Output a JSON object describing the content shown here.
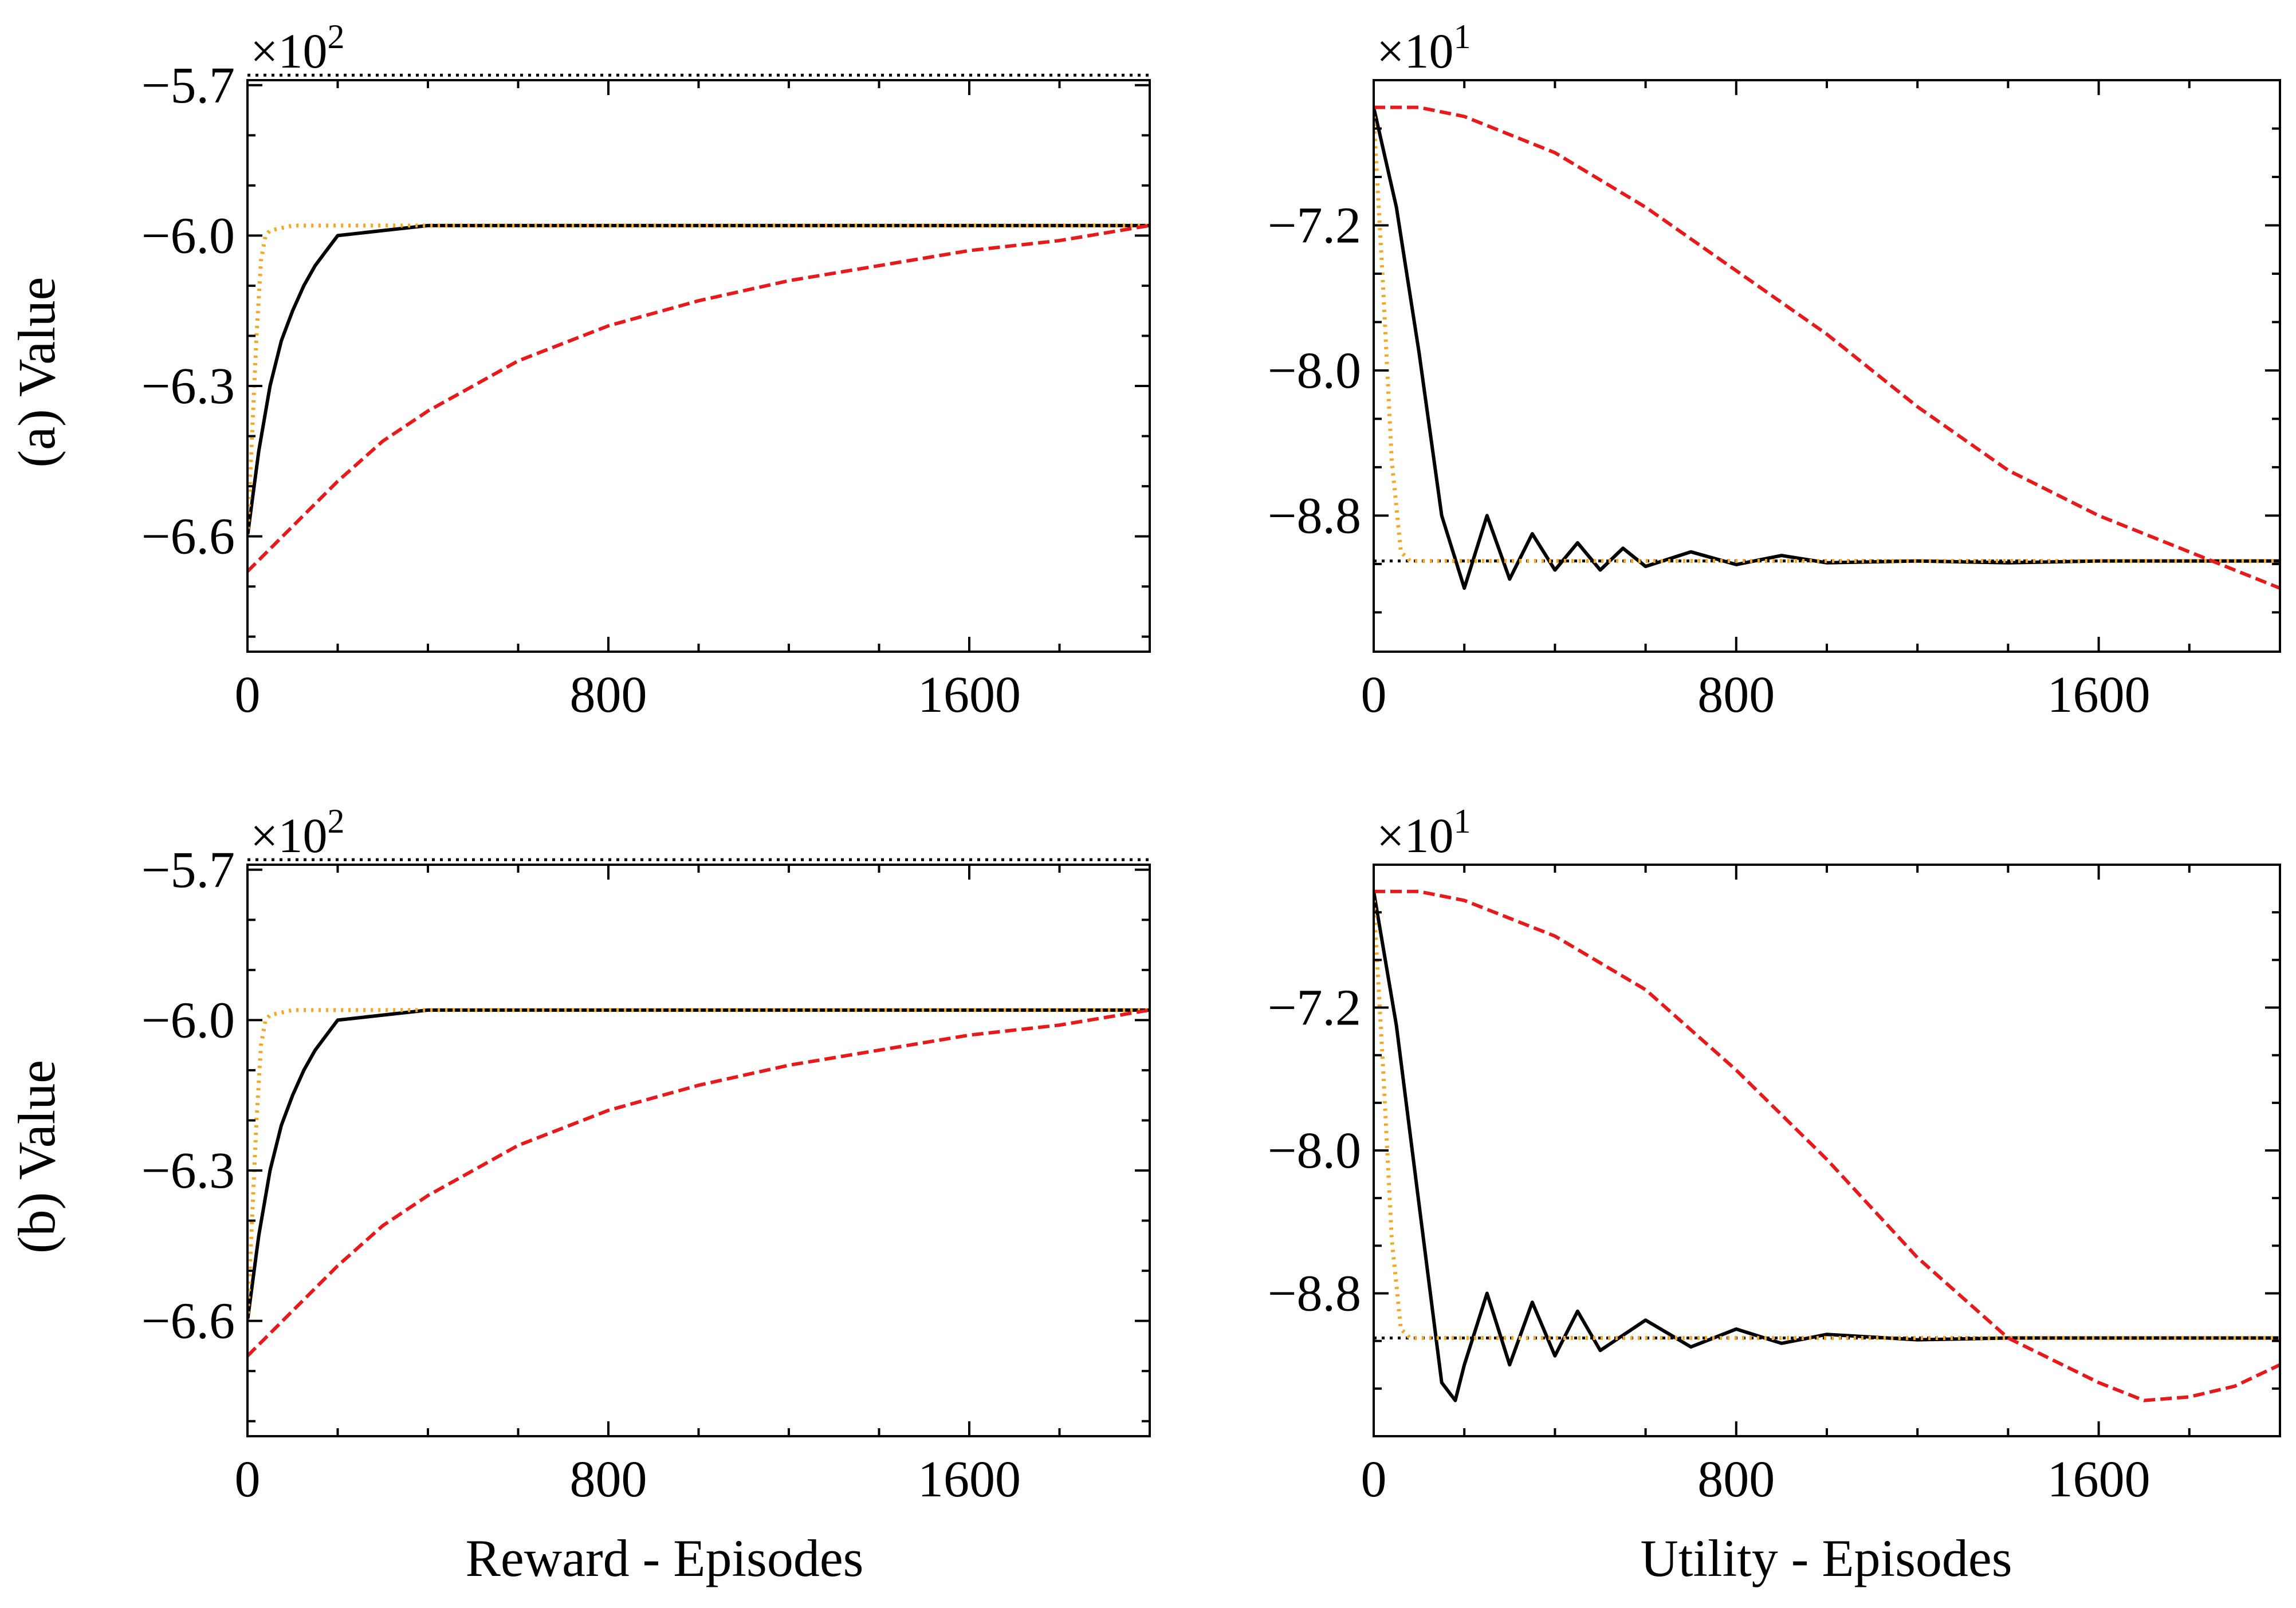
{
  "figure": {
    "x_axis_titles": [
      "Reward - Episodes",
      "Utility - Episodes"
    ],
    "row_titles": [
      "(a) Value",
      "(b) Value"
    ]
  },
  "chart_data": [
    {
      "id": "a-reward",
      "type": "line",
      "row_title": "(a) Value",
      "xlabel": "",
      "ylabel": "(a) Value",
      "multiplier": {
        "base": "×10",
        "exp": "2"
      },
      "xlim": [
        0,
        2000
      ],
      "ylim": [
        -6.83,
        -5.69
      ],
      "xticks": [
        0,
        800,
        1600
      ],
      "xtick_labels": [
        "0",
        "800",
        "1600"
      ],
      "yticks": [
        -6.6,
        -6.3,
        -6.0,
        -5.7
      ],
      "ytick_labels": [
        "−6.6",
        "−6.3",
        "−6.0",
        "−5.7"
      ],
      "reference_line": -5.68,
      "series": [
        {
          "style": "solid",
          "color": "#000000",
          "x": [
            0,
            25,
            50,
            75,
            100,
            125,
            150,
            175,
            200,
            300,
            400,
            600,
            800,
            1000,
            1200,
            1400,
            1600,
            1800,
            2000
          ],
          "y": [
            -6.6,
            -6.43,
            -6.3,
            -6.21,
            -6.15,
            -6.1,
            -6.06,
            -6.03,
            -6.0,
            -5.99,
            -5.98,
            -5.98,
            -5.98,
            -5.98,
            -5.98,
            -5.98,
            -5.98,
            -5.98,
            -5.98
          ]
        },
        {
          "style": "dotted",
          "color": "#F5A623",
          "x": [
            0,
            10,
            20,
            30,
            40,
            50,
            100,
            400,
            800,
            1200,
            1600,
            2000
          ],
          "y": [
            -6.6,
            -6.4,
            -6.2,
            -6.05,
            -6.0,
            -5.99,
            -5.98,
            -5.98,
            -5.98,
            -5.98,
            -5.98,
            -5.98
          ]
        },
        {
          "style": "dashed",
          "color": "#E8191B",
          "x": [
            0,
            100,
            200,
            300,
            400,
            500,
            600,
            800,
            1000,
            1200,
            1400,
            1600,
            1800,
            2000
          ],
          "y": [
            -6.67,
            -6.58,
            -6.49,
            -6.41,
            -6.35,
            -6.3,
            -6.25,
            -6.18,
            -6.13,
            -6.09,
            -6.06,
            -6.03,
            -6.01,
            -5.98
          ]
        }
      ]
    },
    {
      "id": "a-utility",
      "type": "line",
      "row_title": "(a) Value",
      "xlabel": "",
      "ylabel": "",
      "multiplier": {
        "base": "×10",
        "exp": "1"
      },
      "xlim": [
        0,
        2000
      ],
      "ylim": [
        -9.55,
        -6.4
      ],
      "xticks": [
        0,
        800,
        1600
      ],
      "xtick_labels": [
        "0",
        "800",
        "1600"
      ],
      "yticks": [
        -8.8,
        -8.0,
        -7.2
      ],
      "ytick_labels": [
        "−8.8",
        "−8.0",
        "−7.2"
      ],
      "reference_line": -9.05,
      "series": [
        {
          "style": "solid",
          "color": "#000000",
          "x": [
            0,
            50,
            100,
            150,
            200,
            250,
            300,
            350,
            400,
            450,
            500,
            550,
            600,
            700,
            800,
            900,
            1000,
            1200,
            1400,
            1600,
            1800,
            2000
          ],
          "y": [
            -6.55,
            -7.1,
            -7.9,
            -8.8,
            -9.2,
            -8.8,
            -9.15,
            -8.9,
            -9.1,
            -8.95,
            -9.1,
            -8.98,
            -9.08,
            -9.0,
            -9.07,
            -9.02,
            -9.06,
            -9.05,
            -9.06,
            -9.05,
            -9.05,
            -9.05
          ]
        },
        {
          "style": "dotted",
          "color": "#F5A623",
          "x": [
            0,
            20,
            40,
            60,
            80,
            100,
            400,
            800,
            1200,
            1600,
            2000
          ],
          "y": [
            -6.6,
            -7.5,
            -8.5,
            -9.0,
            -9.05,
            -9.05,
            -9.05,
            -9.05,
            -9.05,
            -9.05,
            -9.05
          ]
        },
        {
          "style": "dashed",
          "color": "#E8191B",
          "x": [
            0,
            100,
            200,
            400,
            600,
            800,
            1000,
            1200,
            1400,
            1600,
            1800,
            2000
          ],
          "y": [
            -6.55,
            -6.55,
            -6.6,
            -6.8,
            -7.1,
            -7.45,
            -7.8,
            -8.2,
            -8.55,
            -8.8,
            -9.0,
            -9.2
          ]
        }
      ]
    },
    {
      "id": "b-reward",
      "type": "line",
      "row_title": "(b) Value",
      "xlabel": "Reward - Episodes",
      "ylabel": "(b) Value",
      "multiplier": {
        "base": "×10",
        "exp": "2"
      },
      "xlim": [
        0,
        2000
      ],
      "ylim": [
        -6.83,
        -5.69
      ],
      "xticks": [
        0,
        800,
        1600
      ],
      "xtick_labels": [
        "0",
        "800",
        "1600"
      ],
      "yticks": [
        -6.6,
        -6.3,
        -6.0,
        -5.7
      ],
      "ytick_labels": [
        "−6.6",
        "−6.3",
        "−6.0",
        "−5.7"
      ],
      "reference_line": -5.68,
      "series": [
        {
          "style": "solid",
          "color": "#000000",
          "x": [
            0,
            25,
            50,
            75,
            100,
            125,
            150,
            175,
            200,
            300,
            400,
            600,
            800,
            1000,
            1200,
            1400,
            1600,
            1800,
            2000
          ],
          "y": [
            -6.6,
            -6.43,
            -6.3,
            -6.21,
            -6.15,
            -6.1,
            -6.06,
            -6.03,
            -6.0,
            -5.99,
            -5.98,
            -5.98,
            -5.98,
            -5.98,
            -5.98,
            -5.98,
            -5.98,
            -5.98,
            -5.98
          ]
        },
        {
          "style": "dotted",
          "color": "#F5A623",
          "x": [
            0,
            10,
            20,
            30,
            40,
            50,
            100,
            400,
            800,
            1200,
            1600,
            2000
          ],
          "y": [
            -6.6,
            -6.4,
            -6.2,
            -6.05,
            -6.0,
            -5.99,
            -5.98,
            -5.98,
            -5.98,
            -5.98,
            -5.98,
            -5.98
          ]
        },
        {
          "style": "dashed",
          "color": "#E8191B",
          "x": [
            0,
            100,
            200,
            300,
            400,
            500,
            600,
            800,
            1000,
            1200,
            1400,
            1600,
            1800,
            2000
          ],
          "y": [
            -6.67,
            -6.58,
            -6.49,
            -6.41,
            -6.35,
            -6.3,
            -6.25,
            -6.18,
            -6.13,
            -6.09,
            -6.06,
            -6.03,
            -6.01,
            -5.98
          ]
        }
      ]
    },
    {
      "id": "b-utility",
      "type": "line",
      "row_title": "(b) Value",
      "xlabel": "Utility - Episodes",
      "ylabel": "",
      "multiplier": {
        "base": "×10",
        "exp": "1"
      },
      "xlim": [
        0,
        2000
      ],
      "ylim": [
        -9.6,
        -6.4
      ],
      "xticks": [
        0,
        800,
        1600
      ],
      "xtick_labels": [
        "0",
        "800",
        "1600"
      ],
      "yticks": [
        -8.8,
        -8.0,
        -7.2
      ],
      "ytick_labels": [
        "−8.8",
        "−8.0",
        "−7.2"
      ],
      "reference_line": -9.05,
      "series": [
        {
          "style": "solid",
          "color": "#000000",
          "x": [
            0,
            50,
            100,
            150,
            180,
            200,
            250,
            300,
            350,
            400,
            450,
            500,
            600,
            700,
            800,
            900,
            1000,
            1200,
            1400,
            1600,
            1800,
            2000
          ],
          "y": [
            -6.55,
            -7.3,
            -8.3,
            -9.3,
            -9.4,
            -9.2,
            -8.8,
            -9.2,
            -8.85,
            -9.15,
            -8.9,
            -9.12,
            -8.95,
            -9.1,
            -9.0,
            -9.08,
            -9.03,
            -9.06,
            -9.05,
            -9.05,
            -9.05,
            -9.05
          ]
        },
        {
          "style": "dotted",
          "color": "#F5A623",
          "x": [
            0,
            20,
            40,
            60,
            80,
            100,
            400,
            800,
            1200,
            1600,
            2000
          ],
          "y": [
            -6.6,
            -7.5,
            -8.5,
            -9.0,
            -9.05,
            -9.05,
            -9.05,
            -9.05,
            -9.05,
            -9.05,
            -9.05
          ]
        },
        {
          "style": "dashed",
          "color": "#E8191B",
          "x": [
            0,
            100,
            200,
            400,
            600,
            800,
            1000,
            1200,
            1400,
            1600,
            1700,
            1800,
            1900,
            2000
          ],
          "y": [
            -6.55,
            -6.55,
            -6.6,
            -6.8,
            -7.1,
            -7.55,
            -8.05,
            -8.6,
            -9.05,
            -9.3,
            -9.4,
            -9.38,
            -9.32,
            -9.2
          ]
        }
      ]
    }
  ]
}
